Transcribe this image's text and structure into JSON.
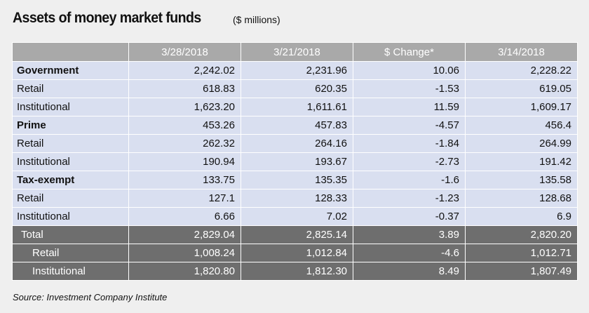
{
  "title": "Assets of money market funds",
  "subtitle": "($ millions)",
  "source": "Source: Investment Company Institute",
  "chart_data": {
    "type": "table",
    "title": "Assets of money market funds",
    "subtitle": "($ millions)",
    "columns": [
      "",
      "3/28/2018",
      "3/21/2018",
      "$ Change*",
      "3/14/2018"
    ],
    "rows": [
      {
        "label": "Government",
        "level": "category",
        "values": [
          "2,242.02",
          "2,231.96",
          "10.06",
          "2,228.22"
        ]
      },
      {
        "label": "Retail",
        "level": "sub",
        "values": [
          "618.83",
          "620.35",
          "-1.53",
          "619.05"
        ]
      },
      {
        "label": "Institutional",
        "level": "sub",
        "values": [
          "1,623.20",
          "1,611.61",
          "11.59",
          "1,609.17"
        ]
      },
      {
        "label": "Prime",
        "level": "category",
        "values": [
          "453.26",
          "457.83",
          "-4.57",
          "456.4"
        ]
      },
      {
        "label": "Retail",
        "level": "sub",
        "values": [
          "262.32",
          "264.16",
          "-1.84",
          "264.99"
        ]
      },
      {
        "label": "Institutional",
        "level": "sub",
        "values": [
          "190.94",
          "193.67",
          "-2.73",
          "191.42"
        ]
      },
      {
        "label": "Tax-exempt",
        "level": "category",
        "values": [
          "133.75",
          "135.35",
          "-1.6",
          "135.58"
        ]
      },
      {
        "label": "Retail",
        "level": "sub",
        "values": [
          "127.1",
          "128.33",
          "-1.23",
          "128.68"
        ]
      },
      {
        "label": "Institutional",
        "level": "sub",
        "values": [
          "6.66",
          "7.02",
          "-0.37",
          "6.9"
        ]
      },
      {
        "label": "Total",
        "level": "total",
        "values": [
          "2,829.04",
          "2,825.14",
          "3.89",
          "2,820.20"
        ]
      },
      {
        "label": "Retail",
        "level": "total-sub",
        "values": [
          "1,008.24",
          "1,012.84",
          "-4.6",
          "1,012.71"
        ]
      },
      {
        "label": "Institutional",
        "level": "total-sub",
        "values": [
          "1,820.80",
          "1,812.30",
          "8.49",
          "1,807.49"
        ]
      }
    ],
    "colors": {
      "header_bg": "#a9a9a9",
      "body_bg": "#d9dff0",
      "total_bg": "#6e6e6e",
      "page_bg": "#efefef"
    }
  }
}
